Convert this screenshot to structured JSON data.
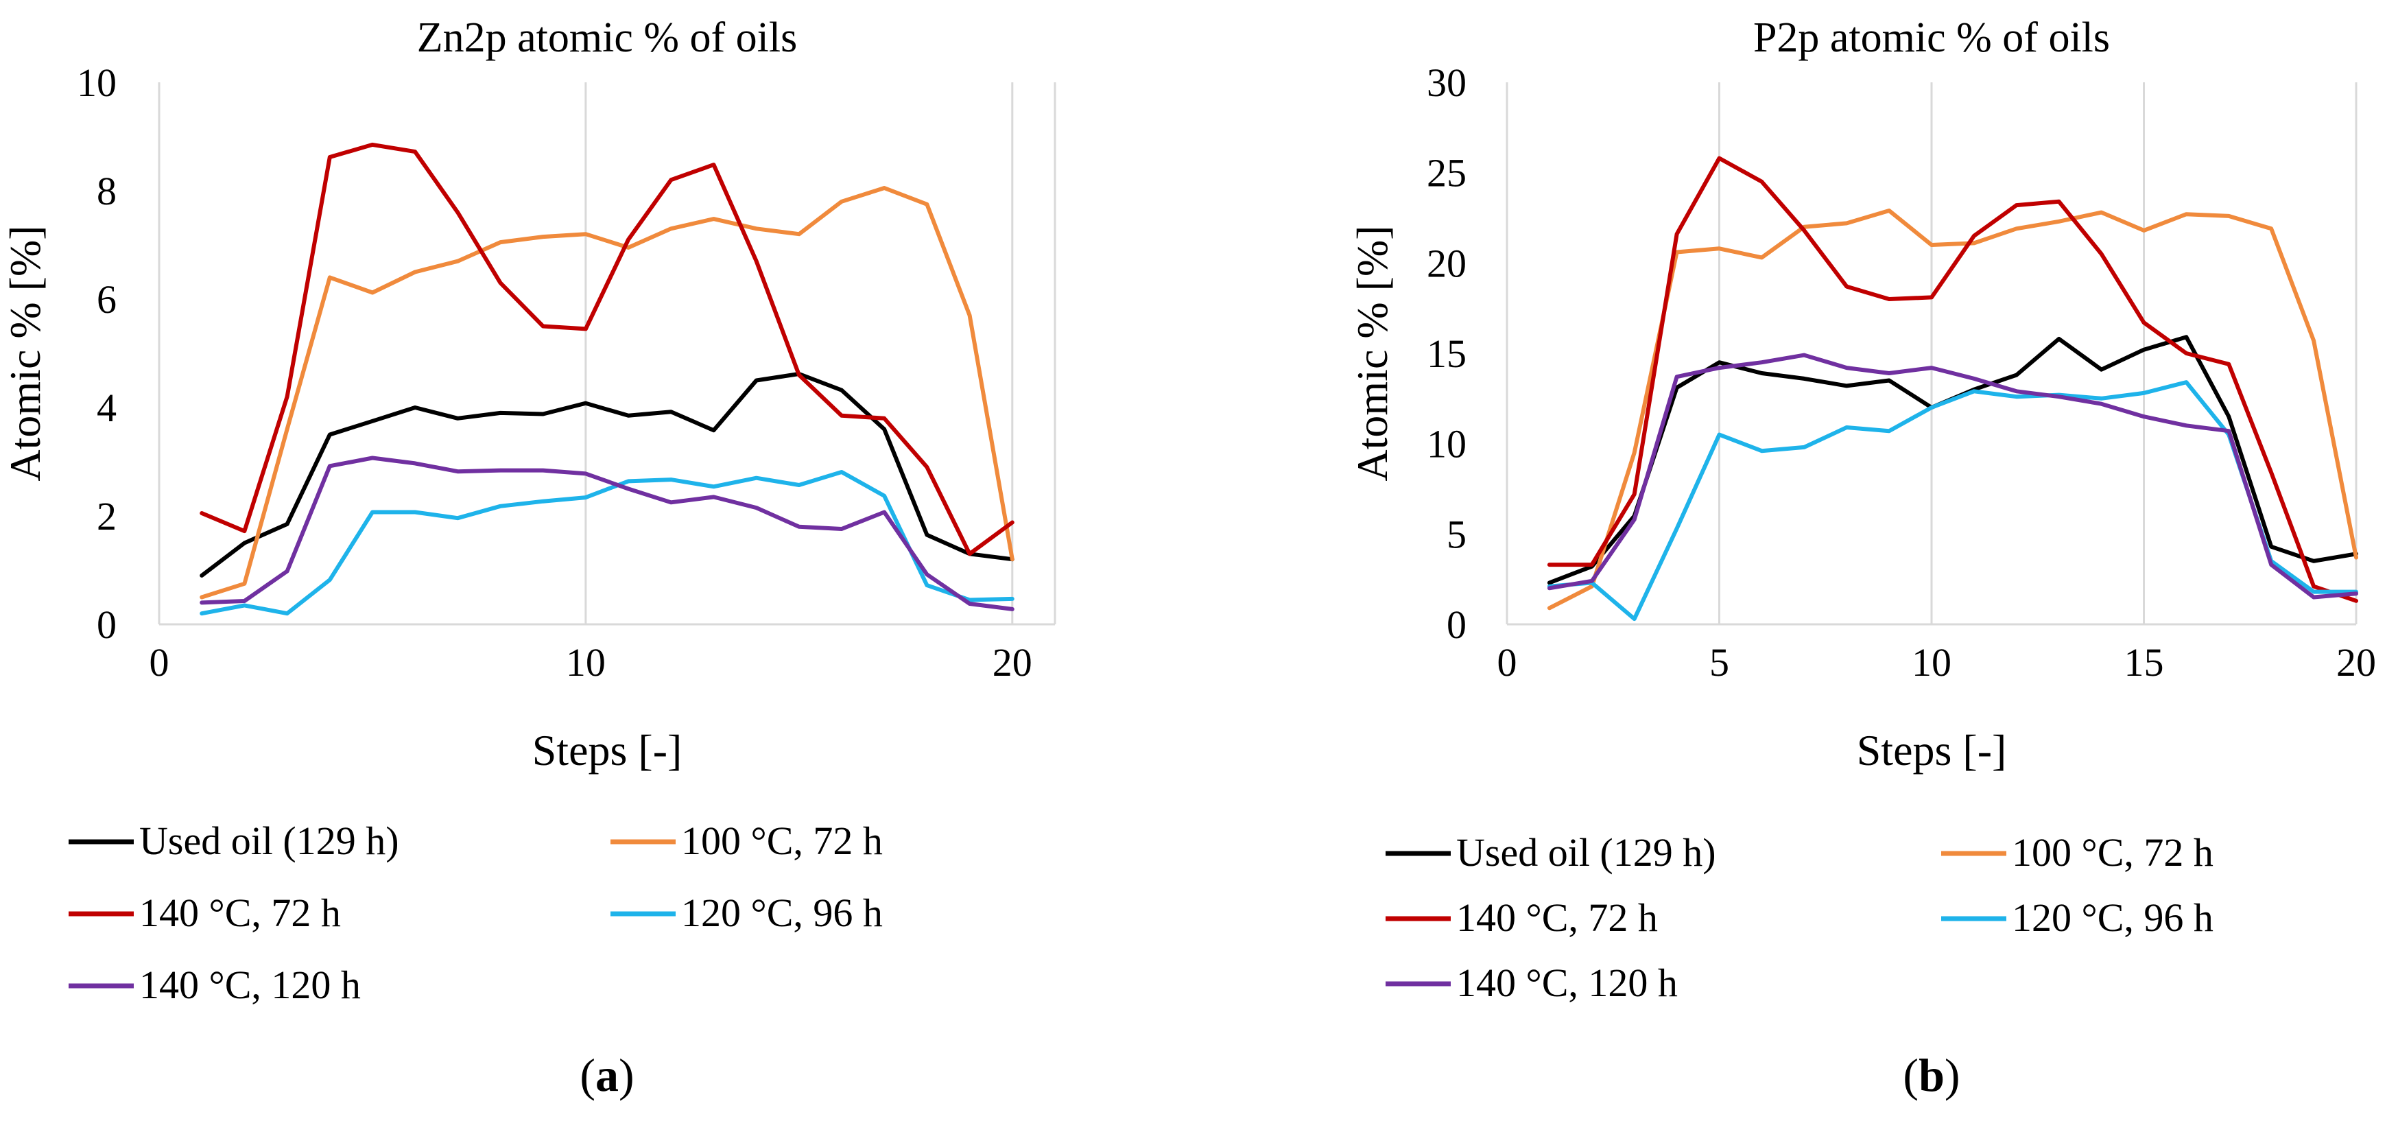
{
  "chart_data": [
    {
      "type": "line",
      "title": "Zn2p atomic % of oils",
      "xlabel": "Steps [-]",
      "ylabel": "Atomic % [%]",
      "xlim": [
        0,
        21
      ],
      "ylim": [
        0,
        10
      ],
      "xticks": [
        0,
        10,
        20
      ],
      "yticks": [
        0,
        2,
        4,
        6,
        8,
        10
      ],
      "grid": "vertical",
      "panel_label": "a",
      "x": [
        1,
        2,
        3,
        4,
        5,
        6,
        7,
        8,
        9,
        10,
        11,
        12,
        13,
        14,
        15,
        16,
        17,
        18,
        19,
        20
      ],
      "series": [
        {
          "name": "Used oil (129 h)",
          "color": "#000000",
          "values": [
            0.9,
            1.5,
            1.85,
            3.5,
            3.75,
            4.0,
            3.8,
            3.9,
            3.88,
            4.08,
            3.85,
            3.92,
            3.58,
            4.5,
            4.62,
            4.32,
            3.6,
            1.65,
            1.3,
            1.2
          ]
        },
        {
          "name": "100 °C, 72 h",
          "color": "#f08a3c",
          "values": [
            0.5,
            0.75,
            3.6,
            6.4,
            6.12,
            6.5,
            6.7,
            7.05,
            7.15,
            7.2,
            6.95,
            7.3,
            7.48,
            7.3,
            7.2,
            7.8,
            8.05,
            7.75,
            5.7,
            1.2
          ]
        },
        {
          "name": "140 °C, 72 h",
          "color": "#c00000",
          "values": [
            2.05,
            1.72,
            4.2,
            8.62,
            8.85,
            8.72,
            7.6,
            6.3,
            5.5,
            5.45,
            7.1,
            8.2,
            8.48,
            6.7,
            4.6,
            3.85,
            3.8,
            2.9,
            1.3,
            1.88
          ]
        },
        {
          "name": "120 °C, 96 h",
          "color": "#1eb3ea",
          "values": [
            0.2,
            0.35,
            0.2,
            0.82,
            2.07,
            2.07,
            1.96,
            2.18,
            2.27,
            2.34,
            2.64,
            2.67,
            2.54,
            2.7,
            2.57,
            2.81,
            2.37,
            0.72,
            0.45,
            0.47
          ]
        },
        {
          "name": "140 °C, 120 h",
          "color": "#7030a0",
          "values": [
            0.4,
            0.43,
            0.98,
            2.92,
            3.07,
            2.97,
            2.82,
            2.84,
            2.84,
            2.78,
            2.5,
            2.25,
            2.35,
            2.15,
            1.8,
            1.76,
            2.07,
            0.92,
            0.38,
            0.28
          ]
        }
      ]
    },
    {
      "type": "line",
      "title": "P2p atomic % of oils",
      "xlabel": "Steps [-]",
      "ylabel": "Atomic % [%]",
      "xlim": [
        0,
        20
      ],
      "ylim": [
        0,
        30
      ],
      "xticks": [
        0,
        5,
        10,
        15,
        20
      ],
      "yticks": [
        0,
        5,
        10,
        15,
        20,
        25,
        30
      ],
      "grid": "vertical",
      "panel_label": "b",
      "x": [
        1,
        2,
        3,
        4,
        5,
        6,
        7,
        8,
        9,
        10,
        11,
        12,
        13,
        14,
        15,
        16,
        17,
        18,
        19,
        20
      ],
      "series": [
        {
          "name": "Used oil (129 h)",
          "color": "#000000",
          "values": [
            2.3,
            3.2,
            6.0,
            13.1,
            14.5,
            13.9,
            13.6,
            13.2,
            13.5,
            12.0,
            13.0,
            13.8,
            15.8,
            14.1,
            15.2,
            15.9,
            11.5,
            4.3,
            3.5,
            3.9
          ]
        },
        {
          "name": "100 °C, 72 h",
          "color": "#f08a3c",
          "values": [
            0.9,
            2.1,
            9.5,
            20.6,
            20.8,
            20.3,
            22.0,
            22.2,
            22.9,
            21.0,
            21.1,
            21.9,
            22.3,
            22.8,
            21.8,
            22.7,
            22.6,
            21.9,
            15.7,
            3.7
          ]
        },
        {
          "name": "140 °C, 72 h",
          "color": "#c00000",
          "values": [
            3.3,
            3.3,
            7.2,
            21.6,
            25.8,
            24.5,
            21.8,
            18.7,
            18.0,
            18.1,
            21.5,
            23.2,
            23.4,
            20.5,
            16.7,
            15.0,
            14.4,
            8.4,
            2.1,
            1.3
          ]
        },
        {
          "name": "120 °C, 96 h",
          "color": "#1eb3ea",
          "values": [
            2.1,
            2.3,
            0.3,
            5.3,
            10.5,
            9.6,
            9.8,
            10.9,
            10.7,
            12.0,
            12.9,
            12.6,
            12.7,
            12.5,
            12.8,
            13.4,
            10.5,
            3.5,
            1.8,
            1.8
          ]
        },
        {
          "name": "140 °C, 120 h",
          "color": "#7030a0",
          "values": [
            2.0,
            2.4,
            5.8,
            13.7,
            14.2,
            14.5,
            14.9,
            14.2,
            13.9,
            14.2,
            13.6,
            12.9,
            12.6,
            12.2,
            11.5,
            11.0,
            10.7,
            3.3,
            1.5,
            1.7
          ]
        }
      ]
    }
  ]
}
